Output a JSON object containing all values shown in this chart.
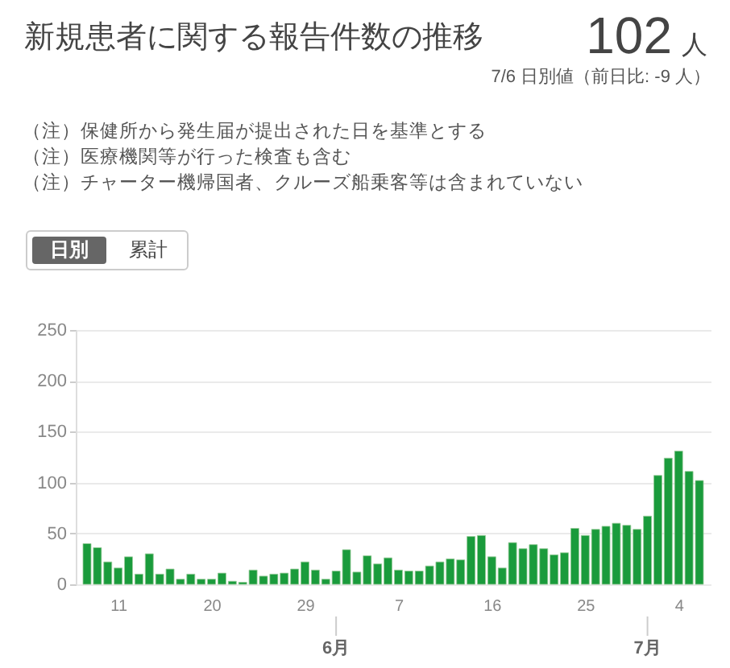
{
  "chart_data": {
    "type": "bar",
    "title": "新規患者に関する報告件数の推移",
    "subtitle": "7/6 日別値（前日比: -9 人）",
    "annotations": [
      "102 人",
      "（注）保健所から発生届が提出された日を基準とする",
      "（注）医療機関等が行った検査も含む",
      "（注）チャーター機帰国者、クルーズ船乗客等は含まれていない",
      "日別",
      "累計",
      "6月",
      "7月"
    ],
    "x": [
      "--05-08",
      "--05-09",
      "--05-10",
      "--05-11",
      "--05-12",
      "--05-13",
      "--05-14",
      "--05-15",
      "--05-16",
      "--05-17",
      "--05-18",
      "--05-19",
      "--05-20",
      "--05-21",
      "--05-22",
      "--05-23",
      "--05-24",
      "--05-25",
      "--05-26",
      "--05-27",
      "--05-28",
      "--05-29",
      "--05-30",
      "--05-31",
      "--06-01",
      "--06-02",
      "--06-03",
      "--06-04",
      "--06-05",
      "--06-06",
      "--06-07",
      "--06-08",
      "--06-09",
      "--06-10",
      "--06-11",
      "--06-12",
      "--06-13",
      "--06-14",
      "--06-15",
      "--06-16",
      "--06-17",
      "--06-18",
      "--06-19",
      "--06-20",
      "--06-21",
      "--06-22",
      "--06-23",
      "--06-24",
      "--06-25",
      "--06-26",
      "--06-27",
      "--06-28",
      "--06-29",
      "--06-30",
      "--07-01",
      "--07-02",
      "--07-03",
      "--07-04",
      "--07-05",
      "--07-06"
    ],
    "values": [
      40,
      36,
      22,
      16,
      27,
      10,
      30,
      10,
      15,
      5,
      10,
      5,
      5,
      11,
      3,
      2,
      14,
      8,
      10,
      11,
      15,
      22,
      14,
      5,
      13,
      34,
      12,
      28,
      20,
      26,
      14,
      13,
      13,
      18,
      22,
      25,
      24,
      47,
      48,
      27,
      16,
      41,
      35,
      39,
      35,
      29,
      31,
      55,
      48,
      54,
      57,
      60,
      58,
      54,
      67,
      107,
      124,
      131,
      111,
      102
    ],
    "color": "#1a9b3c",
    "xlim": [
      "--05-08",
      "--07-06"
    ],
    "xticks": [
      {
        "value": "--05-11",
        "label": "11"
      },
      {
        "value": "--05-20",
        "label": "20"
      },
      {
        "value": "--05-29",
        "label": "29"
      },
      {
        "value": "--06-07",
        "label": "7"
      },
      {
        "value": "--06-16",
        "label": "16"
      },
      {
        "value": "--06-25",
        "label": "25"
      },
      {
        "value": "--07-04",
        "label": "4"
      }
    ],
    "ylim": [
      0,
      250
    ],
    "yticks": [
      0,
      50,
      100,
      150,
      200,
      250
    ],
    "grid": "y"
  }
}
